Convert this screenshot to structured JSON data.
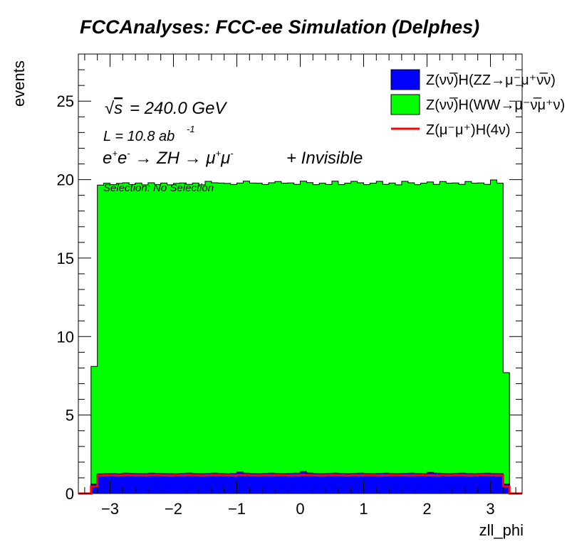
{
  "chart_data": {
    "type": "area",
    "title": "FCCAnalyses: FCC-ee Simulation (Delphes)",
    "xlabel": "zll_phi",
    "ylabel": "events",
    "xlim": [
      -3.5,
      3.5
    ],
    "ylim": [
      0,
      28
    ],
    "x_ticks": [
      -3,
      -2,
      -1,
      0,
      1,
      2,
      3
    ],
    "x_tick_labels": [
      "−3",
      "−2",
      "−1",
      "0",
      "1",
      "2",
      "3"
    ],
    "y_ticks": [
      0,
      5,
      10,
      15,
      20,
      25
    ],
    "y_tick_labels": [
      "0",
      "5",
      "10",
      "15",
      "20",
      "25"
    ],
    "bin_edges_range": [
      -3.3,
      3.3
    ],
    "n_bins": 66,
    "stacked": true,
    "legend_position": "top-right",
    "series": [
      {
        "name": "Z(νν̅)H(ZZ→μ⁻μ⁺ν̅ν)",
        "color": "#0000ff",
        "style": "filled",
        "values": [
          0.6,
          1.25,
          1.27,
          1.28,
          1.26,
          1.3,
          1.29,
          1.28,
          1.27,
          1.3,
          1.29,
          1.28,
          1.27,
          1.26,
          1.29,
          1.3,
          1.28,
          1.27,
          1.29,
          1.3,
          1.28,
          1.26,
          1.29,
          1.38,
          1.3,
          1.28,
          1.27,
          1.29,
          1.3,
          1.28,
          1.27,
          1.29,
          1.3,
          1.4,
          1.31,
          1.28,
          1.27,
          1.29,
          1.3,
          1.28,
          1.27,
          1.29,
          1.3,
          1.28,
          1.27,
          1.29,
          1.3,
          1.28,
          1.27,
          1.29,
          1.3,
          1.28,
          1.27,
          1.35,
          1.3,
          1.28,
          1.27,
          1.29,
          1.3,
          1.28,
          1.27,
          1.29,
          1.3,
          1.28,
          1.27,
          0.6
        ]
      },
      {
        "name": "Z(νν̅)H(WW→μ⁻ν̅μ⁺ν)",
        "color": "#00ff00",
        "style": "filled",
        "values": [
          7.5,
          18.4,
          18.5,
          18.4,
          18.5,
          18.5,
          18.4,
          18.5,
          18.4,
          18.5,
          18.4,
          18.5,
          18.4,
          18.5,
          18.5,
          18.4,
          18.5,
          18.4,
          18.6,
          18.5,
          18.5,
          18.5,
          18.4,
          18.4,
          18.6,
          18.5,
          18.5,
          18.4,
          18.5,
          18.6,
          18.5,
          18.5,
          18.4,
          18.5,
          18.5,
          18.4,
          18.5,
          18.4,
          18.6,
          18.4,
          18.5,
          18.6,
          18.5,
          18.4,
          18.5,
          18.6,
          18.4,
          18.5,
          18.4,
          18.6,
          18.5,
          18.4,
          18.5,
          18.5,
          18.4,
          18.6,
          18.5,
          18.5,
          18.4,
          18.6,
          18.5,
          18.5,
          18.4,
          18.7,
          18.5,
          7.1
        ]
      },
      {
        "name": "Z(μ⁻μ⁺)H(4ν)",
        "color": "#ff0000",
        "style": "line",
        "values": [
          0.45,
          1.15,
          1.17,
          1.16,
          1.15,
          1.18,
          1.17,
          1.16,
          1.15,
          1.17,
          1.18,
          1.16,
          1.15,
          1.17,
          1.16,
          1.18,
          1.17,
          1.15,
          1.16,
          1.18,
          1.17,
          1.16,
          1.15,
          1.17,
          1.18,
          1.16,
          1.15,
          1.17,
          1.16,
          1.18,
          1.17,
          1.15,
          1.16,
          1.18,
          1.17,
          1.16,
          1.15,
          1.17,
          1.18,
          1.16,
          1.15,
          1.17,
          1.16,
          1.18,
          1.17,
          1.15,
          1.16,
          1.18,
          1.17,
          1.16,
          1.15,
          1.17,
          1.18,
          1.16,
          1.15,
          1.17,
          1.16,
          1.18,
          1.17,
          1.15,
          1.16,
          1.18,
          1.17,
          1.16,
          1.15,
          0.45
        ]
      }
    ],
    "annotations": {
      "sqrt_s": "= 240.0 GeV",
      "lumi": "L = 10.8 ab",
      "lumi_sup": "-1",
      "process_tail": "+ Invisible",
      "selection": "Selection: No Selection"
    }
  }
}
